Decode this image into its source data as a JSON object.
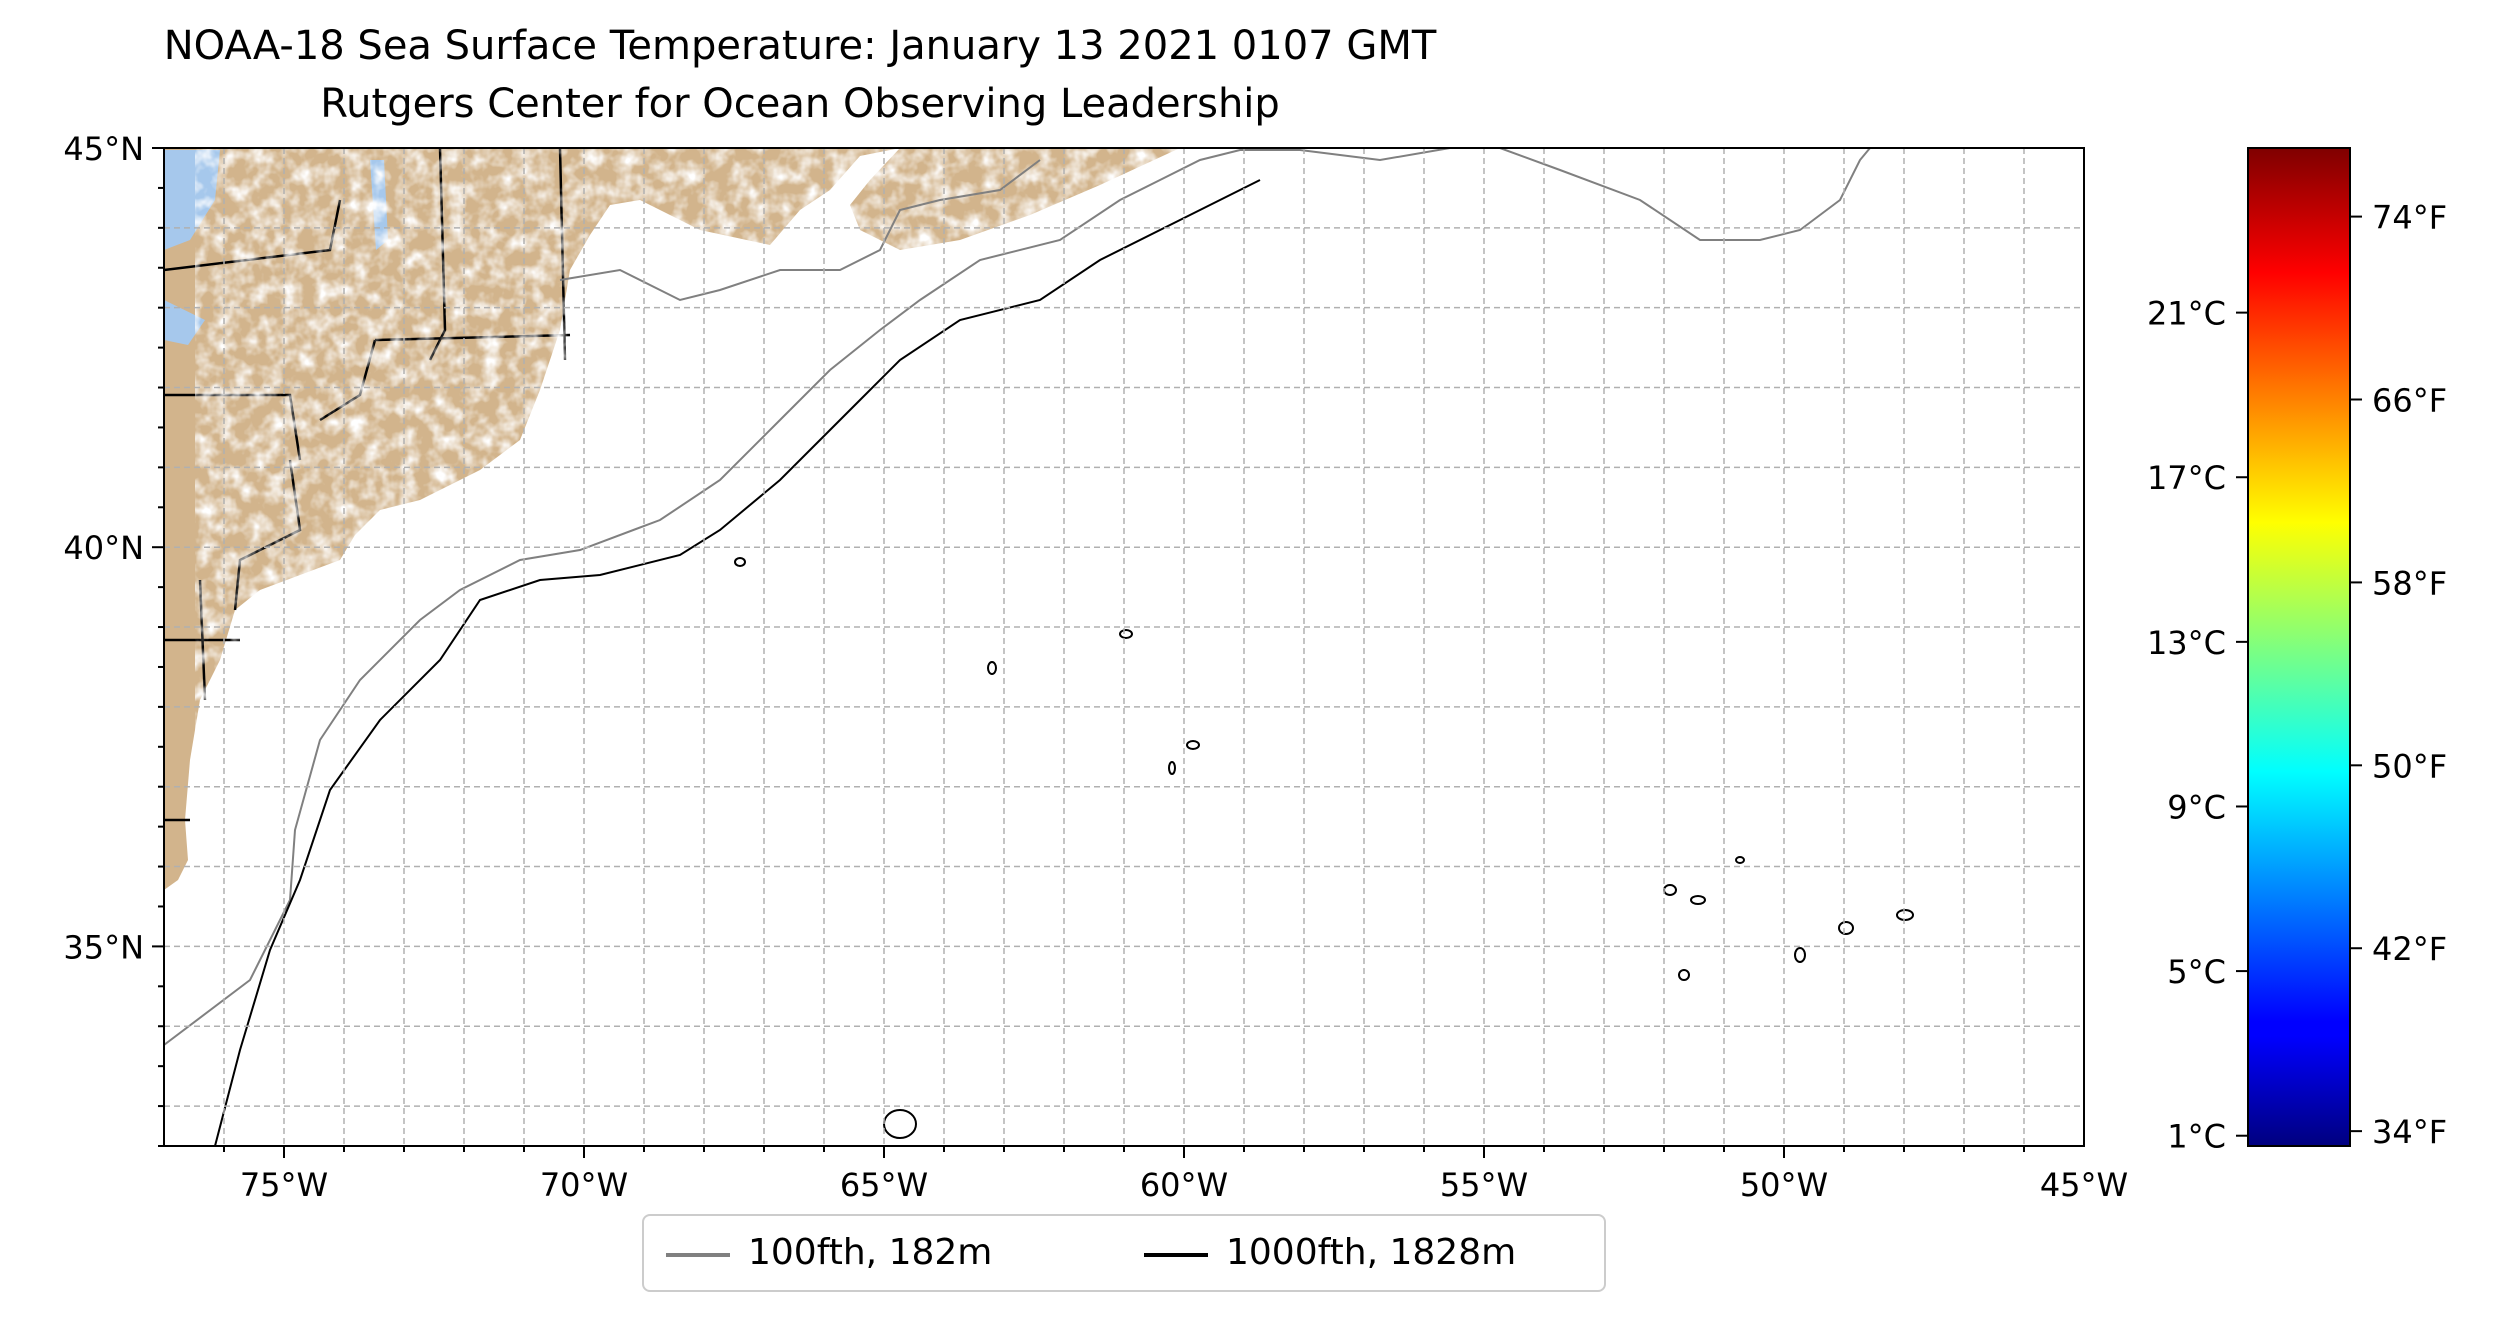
{
  "title": "NOAA-18 Sea Surface Temperature: January 13 2021 0107 GMT",
  "subtitle": "Rutgers Center for Ocean Observing Leadership",
  "map": {
    "lon_range": [
      -77,
      -45
    ],
    "lat_range": [
      32.5,
      45
    ],
    "lat_ticks": [
      "45°N",
      "40°N",
      "35°N"
    ],
    "lon_ticks": [
      "75°W",
      "70°W",
      "65°W",
      "60°W",
      "55°W",
      "50°W",
      "45°W"
    ],
    "grid": true,
    "land_color": "#d2b48c",
    "lake_color": "#a6c8ec",
    "missing_color": "#ffffff"
  },
  "colorbar": {
    "colormap": "jet",
    "celsius_ticks": [
      "21°C",
      "17°C",
      "13°C",
      "9°C",
      "5°C",
      "1°C"
    ],
    "fahrenheit_ticks": [
      "74°F",
      "66°F",
      "58°F",
      "50°F",
      "42°F",
      "34°F"
    ]
  },
  "legend": {
    "items": [
      {
        "label": "100fth, 182m",
        "color": "#808080"
      },
      {
        "label": "1000fth, 1828m",
        "color": "#000000"
      }
    ]
  }
}
